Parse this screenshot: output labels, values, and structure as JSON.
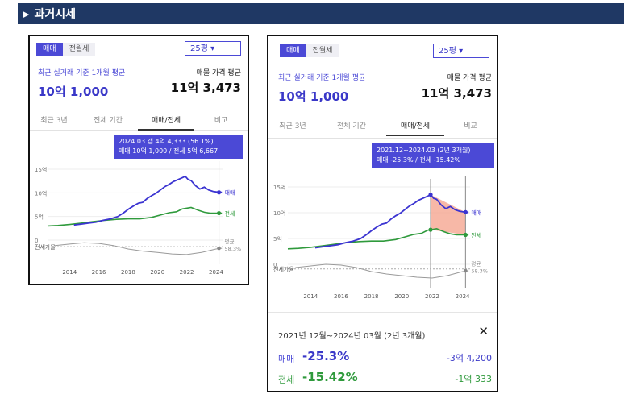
{
  "section": {
    "title": "과거시세"
  },
  "panel_left": {
    "tabs_trade": [
      "매매",
      "전월세"
    ],
    "area_select": "25평 ▾",
    "recent_label": "최근 실거래 기준 1개월 평균",
    "recent_value": "10억 1,000",
    "listing_label": "매물 가격 평균",
    "listing_value": "11억 3,473",
    "period_tabs": [
      "최근 3년",
      "전체 기간",
      "매매/전세",
      "비교"
    ],
    "tooltip_line1": "2024.03  갭 4억 4,333 (56.1%)",
    "tooltip_line2": "매매 10억 1,000 / 전세 5억 6,667",
    "y_ticks": [
      "15억",
      "10억",
      "5억",
      "0"
    ],
    "x_ticks": [
      "2014",
      "2016",
      "2018",
      "2020",
      "2022",
      "2024"
    ],
    "series_labels": [
      "매매",
      "전세"
    ],
    "ratio_label": "전세가율",
    "avg_label": "평균",
    "avg_value": "58.3%"
  },
  "panel_right": {
    "tabs_trade": [
      "매매",
      "전월세"
    ],
    "area_select": "25평 ▾",
    "recent_label": "최근 실거래 기준 1개월 평균",
    "recent_value": "10억 1,000",
    "listing_label": "매물 가격 평균",
    "listing_value": "11억 3,473",
    "period_tabs": [
      "최근 3년",
      "전체 기간",
      "매매/전세",
      "비교"
    ],
    "tooltip_line1": "2021.12~2024.03 (2년 3개월)",
    "tooltip_line2": "매매 -25.3%  /  전세 -15.42%",
    "y_ticks": [
      "15억",
      "10억",
      "5억",
      "0"
    ],
    "x_ticks": [
      "2014",
      "2016",
      "2018",
      "2020",
      "2022",
      "2024"
    ],
    "series_labels": [
      "매매",
      "전세"
    ],
    "ratio_label": "전세가율",
    "avg_label": "평균",
    "avg_value": "58.3%",
    "range_title": "2021년 12월~2024년 03월 (2년 3개월)",
    "close_symbol": "✕",
    "trade_label": "매매",
    "trade_pct": "-25.3%",
    "trade_amount": "-3억 4,200",
    "rent_label": "전세",
    "rent_pct": "-15.42%",
    "rent_amount": "-1억 333"
  },
  "colors": {
    "trade": "#3b34d1",
    "rent": "#2f9a3c",
    "accent": "#4b49d6",
    "header": "#1f3864",
    "range": "#f4a08a"
  }
}
